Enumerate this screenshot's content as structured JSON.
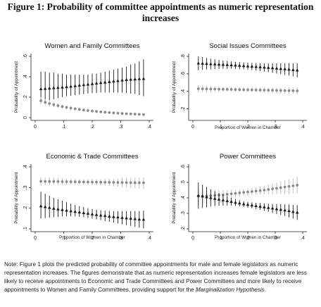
{
  "figure": {
    "title_line1": "Figure 1: Probability of committee appointments as numeric representation",
    "title_line2": "increases"
  },
  "note": {
    "prefix": "Note: Figure 1 plots the predicted probability of committee appointments for male and female legislators as numeric representation increases. The figures demonstrate that as numeric representation increases female legislators are less likely to receive appointments to Economic and Trade Committees and Power Committees and more likely to receive appointments to Women and Family Committees, providing support for the ",
    "italic": "Marginalization Hypothesis",
    "suffix": "."
  },
  "colors": {
    "series_black": "#1a1a1a",
    "series_gray": "#8a8a8a",
    "ci_black": "#1a1a1a",
    "ci_gray": "#c4c4c4",
    "axis": "#222222"
  },
  "chart_data": [
    {
      "type": "scatter",
      "title": "Women and Family Committees",
      "xlabel": "",
      "ylabel": "Probability of Appointment",
      "xlim": [
        0,
        0.4
      ],
      "ylim": [
        0,
        0.6
      ],
      "xticks": [
        "0",
        ".1",
        ".2",
        ".3",
        ".4"
      ],
      "yticks": [
        "0",
        ".2",
        ".4",
        ".6"
      ],
      "ytick_values": [
        0,
        0.2,
        0.4,
        0.6
      ],
      "x": [
        0.02,
        0.035,
        0.05,
        0.065,
        0.08,
        0.095,
        0.11,
        0.125,
        0.14,
        0.155,
        0.17,
        0.185,
        0.2,
        0.215,
        0.23,
        0.245,
        0.26,
        0.275,
        0.29,
        0.305,
        0.32,
        0.335,
        0.35,
        0.365,
        0.38
      ],
      "series": [
        {
          "marker": "triangle",
          "color": "black",
          "values": [
            0.28,
            0.283,
            0.286,
            0.29,
            0.293,
            0.296,
            0.3,
            0.305,
            0.31,
            0.315,
            0.32,
            0.325,
            0.33,
            0.335,
            0.34,
            0.345,
            0.35,
            0.355,
            0.36,
            0.365,
            0.37,
            0.373,
            0.376,
            0.378,
            0.38
          ],
          "lower": [
            0.15,
            0.16,
            0.17,
            0.18,
            0.19,
            0.2,
            0.21,
            0.215,
            0.22,
            0.225,
            0.23,
            0.235,
            0.24,
            0.24,
            0.245,
            0.245,
            0.245,
            0.245,
            0.245,
            0.245,
            0.24,
            0.235,
            0.23,
            0.22,
            0.21
          ],
          "upper": [
            0.45,
            0.45,
            0.44,
            0.44,
            0.43,
            0.43,
            0.42,
            0.42,
            0.42,
            0.42,
            0.42,
            0.42,
            0.43,
            0.43,
            0.44,
            0.45,
            0.46,
            0.47,
            0.48,
            0.49,
            0.5,
            0.52,
            0.53,
            0.55,
            0.57
          ]
        },
        {
          "marker": "circle",
          "color": "gray",
          "values": [
            0.165,
            0.15,
            0.138,
            0.127,
            0.117,
            0.108,
            0.1,
            0.093,
            0.086,
            0.08,
            0.074,
            0.069,
            0.064,
            0.06,
            0.056,
            0.052,
            0.049,
            0.046,
            0.043,
            0.04,
            0.038,
            0.036,
            0.034,
            0.032,
            0.03
          ],
          "lower": [
            0.13,
            0.12,
            0.11,
            0.102,
            0.094,
            0.086,
            0.08,
            0.074,
            0.068,
            0.063,
            0.058,
            0.054,
            0.05,
            0.046,
            0.043,
            0.04,
            0.037,
            0.034,
            0.031,
            0.029,
            0.027,
            0.025,
            0.023,
            0.021,
            0.02
          ],
          "upper": [
            0.2,
            0.18,
            0.166,
            0.152,
            0.14,
            0.13,
            0.12,
            0.112,
            0.104,
            0.097,
            0.09,
            0.084,
            0.078,
            0.074,
            0.069,
            0.064,
            0.061,
            0.058,
            0.055,
            0.051,
            0.049,
            0.047,
            0.045,
            0.043,
            0.04
          ]
        }
      ]
    },
    {
      "type": "scatter",
      "title": "Social Issues Committees",
      "xlabel": "Proportion of Women in Chamber",
      "ylabel": "Probability of Appointment",
      "xlim": [
        0,
        0.4
      ],
      "ylim": [
        0.1,
        0.8
      ],
      "xticks": [
        "0",
        ".1",
        ".2",
        ".3",
        ".4"
      ],
      "yticks": [
        ".2",
        ".4",
        ".6",
        ".8"
      ],
      "ytick_values": [
        0.2,
        0.4,
        0.6,
        0.8
      ],
      "x": [
        0.02,
        0.035,
        0.05,
        0.065,
        0.08,
        0.095,
        0.11,
        0.125,
        0.14,
        0.155,
        0.17,
        0.185,
        0.2,
        0.215,
        0.23,
        0.245,
        0.26,
        0.275,
        0.29,
        0.305,
        0.32,
        0.335,
        0.35,
        0.365,
        0.38
      ],
      "series": [
        {
          "marker": "triangle",
          "color": "black",
          "values": [
            0.72,
            0.718,
            0.715,
            0.712,
            0.71,
            0.707,
            0.705,
            0.702,
            0.7,
            0.697,
            0.694,
            0.69,
            0.687,
            0.684,
            0.68,
            0.677,
            0.673,
            0.67,
            0.666,
            0.662,
            0.658,
            0.654,
            0.65,
            0.645,
            0.64
          ],
          "lower": [
            0.64,
            0.645,
            0.65,
            0.652,
            0.654,
            0.656,
            0.658,
            0.658,
            0.658,
            0.656,
            0.654,
            0.652,
            0.648,
            0.644,
            0.638,
            0.632,
            0.626,
            0.62,
            0.612,
            0.604,
            0.596,
            0.588,
            0.58,
            0.57,
            0.56
          ],
          "upper": [
            0.8,
            0.792,
            0.782,
            0.773,
            0.766,
            0.758,
            0.752,
            0.746,
            0.742,
            0.738,
            0.734,
            0.73,
            0.727,
            0.725,
            0.722,
            0.72,
            0.72,
            0.72,
            0.72,
            0.72,
            0.72,
            0.72,
            0.72,
            0.72,
            0.72
          ]
        },
        {
          "marker": "circle",
          "color": "gray",
          "values": [
            0.43,
            0.429,
            0.428,
            0.427,
            0.426,
            0.425,
            0.424,
            0.423,
            0.422,
            0.421,
            0.42,
            0.419,
            0.418,
            0.417,
            0.416,
            0.415,
            0.414,
            0.413,
            0.412,
            0.411,
            0.41,
            0.409,
            0.408,
            0.407,
            0.406
          ],
          "lower": [
            0.39,
            0.391,
            0.392,
            0.393,
            0.394,
            0.395,
            0.395,
            0.395,
            0.395,
            0.395,
            0.394,
            0.393,
            0.392,
            0.39,
            0.388,
            0.386,
            0.384,
            0.382,
            0.38,
            0.378,
            0.376,
            0.374,
            0.372,
            0.37,
            0.368
          ],
          "upper": [
            0.47,
            0.467,
            0.464,
            0.461,
            0.458,
            0.455,
            0.453,
            0.451,
            0.449,
            0.447,
            0.446,
            0.445,
            0.444,
            0.444,
            0.444,
            0.444,
            0.444,
            0.444,
            0.444,
            0.444,
            0.444,
            0.444,
            0.444,
            0.444,
            0.444
          ]
        }
      ]
    },
    {
      "type": "scatter",
      "title": "Economic & Trade Committees",
      "xlabel": "Proportion of Women in Chamber",
      "ylabel": "Probability of Appointment",
      "xlim": [
        0,
        0.4
      ],
      "ylim": [
        0.1,
        0.4
      ],
      "xticks": [
        "0",
        ".1",
        ".2",
        ".3",
        ".4"
      ],
      "yticks": [
        ".1",
        ".2",
        ".3",
        ".4"
      ],
      "ytick_values": [
        0.1,
        0.2,
        0.3,
        0.4
      ],
      "x": [
        0.02,
        0.035,
        0.05,
        0.065,
        0.08,
        0.095,
        0.11,
        0.125,
        0.14,
        0.155,
        0.17,
        0.185,
        0.2,
        0.215,
        0.23,
        0.245,
        0.26,
        0.275,
        0.29,
        0.305,
        0.32,
        0.335,
        0.35,
        0.365,
        0.38
      ],
      "series": [
        {
          "marker": "circle",
          "color": "gray",
          "values": [
            0.33,
            0.3297,
            0.3294,
            0.3291,
            0.3288,
            0.3285,
            0.3282,
            0.3279,
            0.3276,
            0.3273,
            0.327,
            0.3267,
            0.3264,
            0.3261,
            0.3258,
            0.3255,
            0.3252,
            0.3249,
            0.3246,
            0.3243,
            0.324,
            0.3237,
            0.3234,
            0.3231,
            0.3228
          ],
          "lower": [
            0.31,
            0.311,
            0.312,
            0.313,
            0.314,
            0.315,
            0.315,
            0.315,
            0.315,
            0.315,
            0.314,
            0.313,
            0.312,
            0.311,
            0.31,
            0.309,
            0.308,
            0.306,
            0.304,
            0.302,
            0.3,
            0.298,
            0.296,
            0.294,
            0.292
          ],
          "upper": [
            0.35,
            0.349,
            0.348,
            0.347,
            0.346,
            0.345,
            0.344,
            0.343,
            0.342,
            0.341,
            0.341,
            0.341,
            0.341,
            0.341,
            0.341,
            0.342,
            0.342,
            0.343,
            0.344,
            0.345,
            0.346,
            0.347,
            0.348,
            0.349,
            0.35
          ]
        },
        {
          "marker": "triangle",
          "color": "black",
          "values": [
            0.21,
            0.206,
            0.202,
            0.198,
            0.195,
            0.192,
            0.189,
            0.186,
            0.183,
            0.18,
            0.177,
            0.174,
            0.171,
            0.168,
            0.165,
            0.163,
            0.16,
            0.158,
            0.156,
            0.154,
            0.152,
            0.15,
            0.148,
            0.146,
            0.145
          ],
          "lower": [
            0.15,
            0.152,
            0.154,
            0.156,
            0.158,
            0.16,
            0.16,
            0.16,
            0.16,
            0.158,
            0.156,
            0.153,
            0.15,
            0.146,
            0.142,
            0.138,
            0.134,
            0.13,
            0.126,
            0.122,
            0.118,
            0.114,
            0.11,
            0.106,
            0.102
          ],
          "upper": [
            0.28,
            0.27,
            0.26,
            0.25,
            0.243,
            0.236,
            0.229,
            0.222,
            0.216,
            0.21,
            0.205,
            0.2,
            0.196,
            0.193,
            0.19,
            0.188,
            0.187,
            0.186,
            0.186,
            0.186,
            0.186,
            0.186,
            0.186,
            0.186,
            0.188
          ]
        }
      ]
    },
    {
      "type": "scatter",
      "title": "Power Committees",
      "xlabel": "Proportion of Women in Chamber",
      "ylabel": "Probability of Appointment",
      "xlim": [
        0,
        0.4
      ],
      "ylim": [
        0.2,
        0.6
      ],
      "xticks": [
        "0",
        ".1",
        ".2",
        ".3",
        ".4"
      ],
      "yticks": [
        ".2",
        ".3",
        ".4",
        ".5",
        ".6"
      ],
      "ytick_values": [
        0.2,
        0.3,
        0.4,
        0.5,
        0.6
      ],
      "x": [
        0.02,
        0.035,
        0.05,
        0.065,
        0.08,
        0.095,
        0.11,
        0.125,
        0.14,
        0.155,
        0.17,
        0.185,
        0.2,
        0.215,
        0.23,
        0.245,
        0.26,
        0.275,
        0.29,
        0.305,
        0.32,
        0.335,
        0.35,
        0.365,
        0.38
      ],
      "series": [
        {
          "marker": "circle",
          "color": "gray",
          "values": [
            0.41,
            0.411,
            0.412,
            0.414,
            0.416,
            0.418,
            0.42,
            0.423,
            0.426,
            0.429,
            0.432,
            0.435,
            0.438,
            0.441,
            0.444,
            0.447,
            0.45,
            0.454,
            0.458,
            0.462,
            0.466,
            0.47,
            0.474,
            0.478,
            0.482
          ],
          "lower": [
            0.36,
            0.365,
            0.37,
            0.375,
            0.38,
            0.385,
            0.39,
            0.395,
            0.4,
            0.405,
            0.41,
            0.413,
            0.416,
            0.418,
            0.42,
            0.421,
            0.422,
            0.423,
            0.424,
            0.425,
            0.426,
            0.427,
            0.428,
            0.429,
            0.43
          ],
          "upper": [
            0.46,
            0.457,
            0.454,
            0.453,
            0.452,
            0.451,
            0.45,
            0.451,
            0.452,
            0.453,
            0.454,
            0.457,
            0.46,
            0.464,
            0.468,
            0.473,
            0.478,
            0.485,
            0.492,
            0.499,
            0.506,
            0.513,
            0.52,
            0.527,
            0.534
          ]
        },
        {
          "marker": "triangle",
          "color": "black",
          "values": [
            0.415,
            0.41,
            0.405,
            0.4,
            0.395,
            0.39,
            0.385,
            0.38,
            0.375,
            0.37,
            0.365,
            0.36,
            0.356,
            0.352,
            0.348,
            0.344,
            0.34,
            0.336,
            0.332,
            0.328,
            0.324,
            0.32,
            0.316,
            0.31,
            0.305
          ],
          "lower": [
            0.33,
            0.335,
            0.34,
            0.344,
            0.347,
            0.35,
            0.35,
            0.35,
            0.35,
            0.348,
            0.345,
            0.342,
            0.338,
            0.333,
            0.328,
            0.322,
            0.316,
            0.31,
            0.303,
            0.296,
            0.289,
            0.282,
            0.274,
            0.266,
            0.258
          ],
          "upper": [
            0.5,
            0.485,
            0.47,
            0.456,
            0.443,
            0.43,
            0.42,
            0.41,
            0.4,
            0.392,
            0.385,
            0.378,
            0.374,
            0.371,
            0.368,
            0.366,
            0.364,
            0.362,
            0.361,
            0.36,
            0.359,
            0.358,
            0.358,
            0.354,
            0.352
          ]
        }
      ]
    }
  ]
}
